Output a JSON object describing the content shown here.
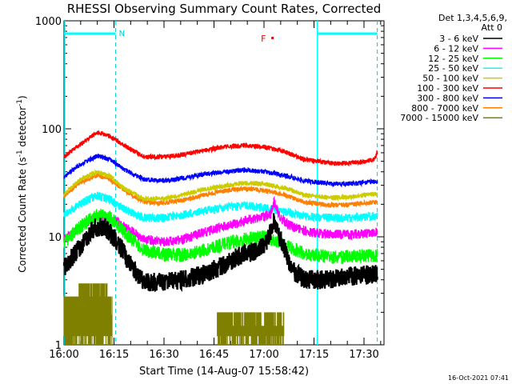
{
  "chart_data": {
    "type": "line",
    "title": "RHESSI Observing Summary Count Rates, Corrected",
    "xlabel": "Start Time (14-Aug-07 15:58:42)",
    "ylabel_parts": {
      "prefix": "Corrected Count Rate (s",
      "sup1": "-1",
      "mid": " detector",
      "sup2": "-1",
      "suffix": ")"
    },
    "y_scale": "log",
    "ylim": [
      1,
      1000
    ],
    "y_ticks": [
      {
        "value": 1,
        "label": "1"
      },
      {
        "value": 10,
        "label": "10"
      },
      {
        "value": 100,
        "label": "100"
      },
      {
        "value": 1000,
        "label": "1000"
      }
    ],
    "xlim": [
      "16:00",
      "17:36"
    ],
    "x_ticks": [
      "16:00",
      "16:15",
      "16:30",
      "16:45",
      "17:00",
      "17:15",
      "17:30"
    ],
    "legend": {
      "position": "top-right",
      "header": [
        "Det 1,3,4,5,6,9,",
        "Att 0"
      ]
    },
    "series": [
      {
        "name": "3 - 6 keV",
        "color": "#000000",
        "points": [
          [
            "16:00",
            5.2
          ],
          [
            "16:05",
            8
          ],
          [
            "16:09",
            12
          ],
          [
            "16:12",
            12.5
          ],
          [
            "16:16",
            9
          ],
          [
            "16:20",
            5.5
          ],
          [
            "16:24",
            3.8
          ],
          [
            "16:30",
            3.8
          ],
          [
            "16:36",
            4
          ],
          [
            "16:42",
            4.5
          ],
          [
            "16:48",
            5.5
          ],
          [
            "16:52",
            6.5
          ],
          [
            "16:58",
            7.5
          ],
          [
            "17:01",
            9.2
          ],
          [
            "17:03",
            14
          ],
          [
            "17:04",
            11
          ],
          [
            "17:06",
            8
          ],
          [
            "17:08",
            5
          ],
          [
            "17:12",
            4
          ],
          [
            "17:20",
            4
          ],
          [
            "17:26",
            4.3
          ],
          [
            "17:34",
            4.5
          ]
        ]
      },
      {
        "name": "6 - 12 keV",
        "color": "#ff00ff",
        "points": [
          [
            "16:00",
            9.5
          ],
          [
            "16:05",
            12.5
          ],
          [
            "16:10",
            15.5
          ],
          [
            "16:14",
            15
          ],
          [
            "16:18",
            12.5
          ],
          [
            "16:24",
            9.5
          ],
          [
            "16:30",
            9
          ],
          [
            "16:36",
            9.5
          ],
          [
            "16:42",
            11
          ],
          [
            "16:48",
            12.5
          ],
          [
            "16:54",
            14
          ],
          [
            "16:58",
            15
          ],
          [
            "17:02",
            16
          ],
          [
            "17:03",
            21
          ],
          [
            "17:05",
            15
          ],
          [
            "17:08",
            12.5
          ],
          [
            "17:14",
            11
          ],
          [
            "17:20",
            10.5
          ],
          [
            "17:26",
            10.5
          ],
          [
            "17:34",
            11
          ]
        ]
      },
      {
        "name": "12 - 25 keV",
        "color": "#00ff00",
        "points": [
          [
            "16:00",
            8.8
          ],
          [
            "16:05",
            12.5
          ],
          [
            "16:10",
            16
          ],
          [
            "16:14",
            15
          ],
          [
            "16:18",
            11
          ],
          [
            "16:24",
            7.5
          ],
          [
            "16:30",
            6.8
          ],
          [
            "16:36",
            6.8
          ],
          [
            "16:42",
            7.5
          ],
          [
            "16:48",
            8.5
          ],
          [
            "16:54",
            9.5
          ],
          [
            "17:00",
            10
          ],
          [
            "17:06",
            8.5
          ],
          [
            "17:12",
            7
          ],
          [
            "17:20",
            6.5
          ],
          [
            "17:26",
            6.5
          ],
          [
            "17:34",
            6.8
          ]
        ]
      },
      {
        "name": "25 - 50 keV",
        "color": "#00ffff",
        "points": [
          [
            "16:00",
            16
          ],
          [
            "16:05",
            20.5
          ],
          [
            "16:10",
            24
          ],
          [
            "16:14",
            22
          ],
          [
            "16:18",
            18
          ],
          [
            "16:24",
            15
          ],
          [
            "16:30",
            15
          ],
          [
            "16:36",
            16
          ],
          [
            "16:42",
            17.5
          ],
          [
            "16:48",
            18.5
          ],
          [
            "16:54",
            19.5
          ],
          [
            "17:00",
            18.5
          ],
          [
            "17:06",
            17
          ],
          [
            "17:12",
            15.5
          ],
          [
            "17:20",
            15
          ],
          [
            "17:26",
            15
          ],
          [
            "17:34",
            15.5
          ]
        ]
      },
      {
        "name": "50 - 100 keV",
        "color": "#cccc00",
        "points": [
          [
            "16:00",
            25
          ],
          [
            "16:05",
            34
          ],
          [
            "16:10",
            40
          ],
          [
            "16:14",
            36
          ],
          [
            "16:18",
            28
          ],
          [
            "16:24",
            22.5
          ],
          [
            "16:30",
            22.5
          ],
          [
            "16:36",
            24.5
          ],
          [
            "16:42",
            27.5
          ],
          [
            "16:48",
            29.5
          ],
          [
            "16:54",
            31.5
          ],
          [
            "17:00",
            31
          ],
          [
            "17:06",
            28.5
          ],
          [
            "17:12",
            24.5
          ],
          [
            "17:20",
            23
          ],
          [
            "17:26",
            23.5
          ],
          [
            "17:34",
            25
          ]
        ]
      },
      {
        "name": "100 - 300 keV",
        "color": "#ff0000",
        "points": [
          [
            "16:00",
            55
          ],
          [
            "16:05",
            72
          ],
          [
            "16:10",
            93
          ],
          [
            "16:14",
            85
          ],
          [
            "16:18",
            70
          ],
          [
            "16:24",
            55
          ],
          [
            "16:30",
            55
          ],
          [
            "16:36",
            58
          ],
          [
            "16:42",
            63
          ],
          [
            "16:48",
            68
          ],
          [
            "16:54",
            70
          ],
          [
            "17:00",
            68
          ],
          [
            "17:06",
            62
          ],
          [
            "17:12",
            52
          ],
          [
            "17:20",
            48
          ],
          [
            "17:26",
            48
          ],
          [
            "17:33",
            52
          ],
          [
            "17:34",
            60
          ]
        ]
      },
      {
        "name": "300 - 800 keV",
        "color": "#0000ff",
        "points": [
          [
            "16:00",
            36
          ],
          [
            "16:05",
            47
          ],
          [
            "16:10",
            56
          ],
          [
            "16:14",
            52
          ],
          [
            "16:18",
            42
          ],
          [
            "16:24",
            34
          ],
          [
            "16:30",
            33
          ],
          [
            "16:36",
            35
          ],
          [
            "16:42",
            38
          ],
          [
            "16:48",
            40
          ],
          [
            "16:54",
            41.5
          ],
          [
            "17:00",
            40
          ],
          [
            "17:06",
            37
          ],
          [
            "17:12",
            33
          ],
          [
            "17:20",
            31
          ],
          [
            "17:26",
            31
          ],
          [
            "17:34",
            32.5
          ]
        ]
      },
      {
        "name": "800 - 7000 keV",
        "color": "#ff8000",
        "points": [
          [
            "16:00",
            24
          ],
          [
            "16:05",
            32
          ],
          [
            "16:10",
            37
          ],
          [
            "16:14",
            34
          ],
          [
            "16:18",
            27
          ],
          [
            "16:24",
            21
          ],
          [
            "16:30",
            20.5
          ],
          [
            "16:36",
            22
          ],
          [
            "16:42",
            24.5
          ],
          [
            "16:48",
            26.5
          ],
          [
            "16:54",
            28
          ],
          [
            "17:00",
            27
          ],
          [
            "17:06",
            24.5
          ],
          [
            "17:12",
            21
          ],
          [
            "17:20",
            19.5
          ],
          [
            "17:26",
            20
          ],
          [
            "17:34",
            21
          ]
        ]
      },
      {
        "name": "7000 - 15000 keV",
        "color": "#808000",
        "segments": [
          {
            "from": "16:00",
            "to": "16:14.5",
            "low": 1,
            "high": 2.8
          },
          {
            "from": "16:04.5",
            "to": "16:13",
            "low": 1.5,
            "high": 3.7
          },
          {
            "from": "16:46",
            "to": "17:06",
            "low": 1,
            "high": 2
          }
        ]
      }
    ],
    "annotations": {
      "saa_bars": [
        {
          "from": "16:00",
          "to": "16:15.5",
          "label": "N"
        },
        {
          "from": "17:16",
          "to": "17:34",
          "label": ""
        }
      ],
      "flare_marker": {
        "label": "F",
        "time": "17:01"
      },
      "vertical_markers": [
        "16:15.5",
        "17:16",
        "17:34"
      ]
    }
  },
  "footer": {
    "timestamp": "16-Oct-2021 07:41"
  }
}
